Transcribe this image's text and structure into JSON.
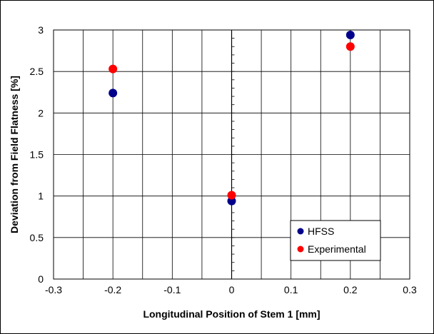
{
  "chart_data": {
    "type": "scatter",
    "xlabel": "Longitudinal Position of Stem 1 [mm]",
    "ylabel": "Deviation from Field Flatness [%]",
    "xlim": [
      -0.3,
      0.3
    ],
    "ylim": [
      0,
      3
    ],
    "x_ticks": [
      -0.3,
      -0.2,
      -0.1,
      0,
      0.1,
      0.2,
      0.3
    ],
    "y_ticks": [
      0,
      0.5,
      1,
      1.5,
      2,
      2.5,
      3
    ],
    "x_tick_labels": [
      "-0.3",
      "-0.2",
      "-0.1",
      "0",
      "0.1",
      "0.2",
      "0.3"
    ],
    "y_tick_labels": [
      "0",
      "0.5",
      "1",
      "1.5",
      "2",
      "2.5",
      "3"
    ],
    "x_grid_step": 0.05,
    "grid": true,
    "legend_position": "bottom-right",
    "series": [
      {
        "name": "HFSS",
        "color": "#00008B",
        "x": [
          -0.2,
          0,
          0.2
        ],
        "y": [
          2.24,
          0.94,
          2.94
        ]
      },
      {
        "name": "Experimental",
        "color": "#FF0000",
        "x": [
          -0.2,
          0,
          0.2
        ],
        "y": [
          2.53,
          1.01,
          2.8
        ]
      }
    ]
  }
}
